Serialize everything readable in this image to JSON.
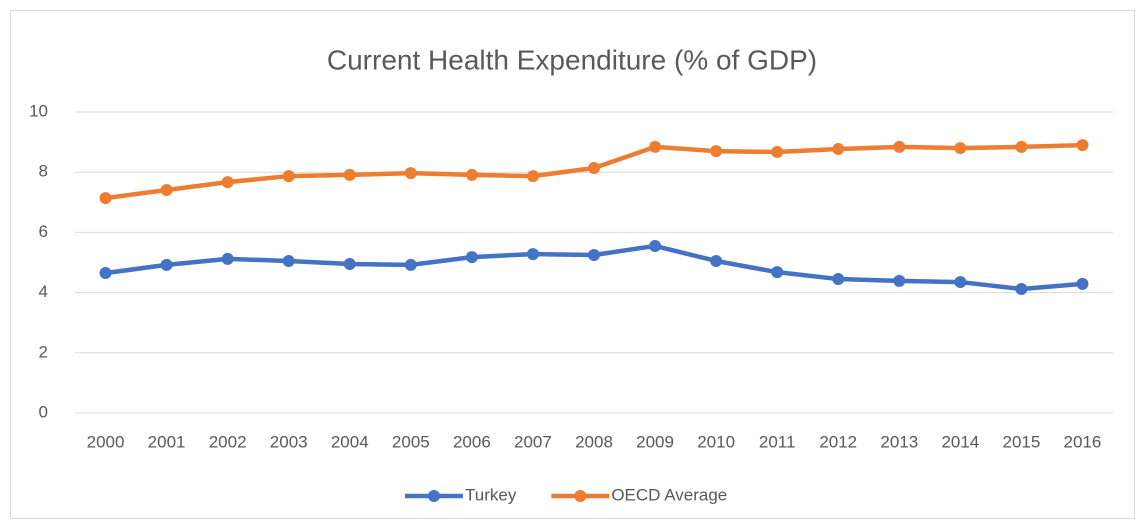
{
  "chart_data": {
    "type": "line",
    "title": "Current Health Expenditure (% of GDP)",
    "categories": [
      "2000",
      "2001",
      "2002",
      "2003",
      "2004",
      "2005",
      "2006",
      "2007",
      "2008",
      "2009",
      "2010",
      "2011",
      "2012",
      "2013",
      "2014",
      "2015",
      "2016"
    ],
    "series": [
      {
        "name": "Turkey",
        "color": "#4472c4",
        "values": [
          4.65,
          4.92,
          5.12,
          5.05,
          4.95,
          4.92,
          5.18,
          5.28,
          5.25,
          5.55,
          5.05,
          4.68,
          4.45,
          4.39,
          4.35,
          4.12,
          4.29
        ]
      },
      {
        "name": "OECD Average",
        "color": "#ed7d31",
        "values": [
          7.14,
          7.41,
          7.67,
          7.87,
          7.91,
          7.97,
          7.91,
          7.87,
          8.14,
          8.84,
          8.7,
          8.67,
          8.77,
          8.84,
          8.8,
          8.84,
          8.9
        ]
      }
    ],
    "ylim": [
      0,
      10
    ],
    "yticks": [
      0,
      2,
      4,
      6,
      8,
      10
    ],
    "grid": true,
    "legend": "bottom"
  }
}
